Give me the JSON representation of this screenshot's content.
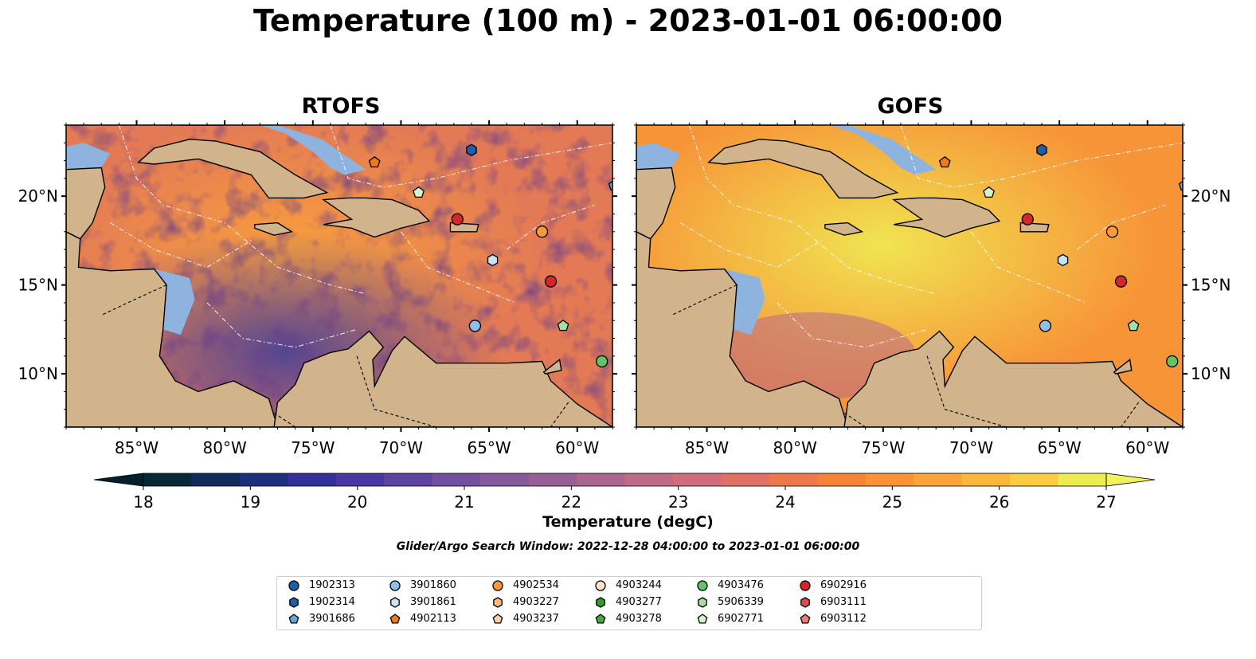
{
  "title": "Temperature (100 m) - 2023-01-01 06:00:00",
  "panels": [
    {
      "id": "rtofs",
      "title": "RTOFS"
    },
    {
      "id": "gofs",
      "title": "GOFS"
    }
  ],
  "axes": {
    "x_ticks": [
      "85°W",
      "80°W",
      "75°W",
      "70°W",
      "65°W",
      "60°W"
    ],
    "x_tick_values": [
      -85,
      -80,
      -75,
      -70,
      -65,
      -60
    ],
    "y_ticks": [
      "20°N",
      "15°N",
      "10°N"
    ],
    "y_tick_values": [
      20,
      15,
      10
    ],
    "lon_range": [
      -89,
      -58
    ],
    "lat_range": [
      7,
      24
    ]
  },
  "colorbar": {
    "ticks": [
      "18",
      "19",
      "20",
      "21",
      "22",
      "23",
      "24",
      "25",
      "26",
      "27"
    ],
    "label": "Temperature (degC)",
    "range": [
      18,
      27
    ],
    "colors": [
      "#06293a",
      "#0f2c5a",
      "#1e2f7d",
      "#33309a",
      "#4a37a0",
      "#5f43a0",
      "#72509f",
      "#86599c",
      "#985f97",
      "#ab6690",
      "#bd6b86",
      "#cf6e7a",
      "#df7265",
      "#ec784e",
      "#f7833b",
      "#fb9237",
      "#fca33a",
      "#fbb63e",
      "#f9cc44",
      "#eded52"
    ],
    "under_color": "#04202e",
    "over_color": "#f0f25e"
  },
  "search_window": "Glider/Argo Search Window: 2022-12-28 04:00:00 to 2023-01-01 06:00:00",
  "legend": [
    {
      "id": "1902313",
      "marker": "circle",
      "color": "#1f5fa8"
    },
    {
      "id": "1902314",
      "marker": "hexagon",
      "color": "#1f5fa8"
    },
    {
      "id": "3901686",
      "marker": "pentagon",
      "color": "#6aa5dc"
    },
    {
      "id": "3901860",
      "marker": "circle",
      "color": "#8fc1e8"
    },
    {
      "id": "3901861",
      "marker": "hexagon",
      "color": "#c8e2f7"
    },
    {
      "id": "4902113",
      "marker": "pentagon",
      "color": "#f07a14"
    },
    {
      "id": "4902534",
      "marker": "circle",
      "color": "#fb9a3a"
    },
    {
      "id": "4903227",
      "marker": "hexagon",
      "color": "#fdba7c"
    },
    {
      "id": "4903237",
      "marker": "pentagon",
      "color": "#fdd1a8"
    },
    {
      "id": "4903244",
      "marker": "circle",
      "color": "#fde3cf"
    },
    {
      "id": "4903277",
      "marker": "hexagon",
      "color": "#2ca02c"
    },
    {
      "id": "4903278",
      "marker": "pentagon",
      "color": "#41ab3f"
    },
    {
      "id": "4903476",
      "marker": "circle",
      "color": "#66c266"
    },
    {
      "id": "5906339",
      "marker": "hexagon",
      "color": "#a3dfa0"
    },
    {
      "id": "6902771",
      "marker": "pentagon",
      "color": "#d4f2cf"
    },
    {
      "id": "6902916",
      "marker": "circle",
      "color": "#d62728"
    },
    {
      "id": "6903111",
      "marker": "hexagon",
      "color": "#e34a4a"
    },
    {
      "id": "6903112",
      "marker": "pentagon",
      "color": "#f07c7c"
    }
  ],
  "observations": [
    {
      "lon": -71.5,
      "lat": 21.9,
      "marker": "pentagon",
      "color": "#f07a14"
    },
    {
      "lon": -66.0,
      "lat": 22.6,
      "marker": "hexagon",
      "color": "#1f5fa8"
    },
    {
      "lon": -69.0,
      "lat": 20.2,
      "marker": "pentagon",
      "color": "#d4f2cf"
    },
    {
      "lon": -66.8,
      "lat": 18.7,
      "marker": "circle",
      "color": "#d62728"
    },
    {
      "lon": -62.0,
      "lat": 18.0,
      "marker": "circle",
      "color": "#fb9a3a"
    },
    {
      "lon": -64.8,
      "lat": 16.4,
      "marker": "hexagon",
      "color": "#c8e2f7"
    },
    {
      "lon": -61.5,
      "lat": 15.2,
      "marker": "circle",
      "color": "#d62728"
    },
    {
      "lon": -65.8,
      "lat": 12.7,
      "marker": "circle",
      "color": "#8fc1e8"
    },
    {
      "lon": -60.8,
      "lat": 12.7,
      "marker": "pentagon",
      "color": "#a3dfa0"
    },
    {
      "lon": -58.6,
      "lat": 10.7,
      "marker": "circle",
      "color": "#66c266"
    },
    {
      "lon": -57.9,
      "lat": 20.6,
      "marker": "pentagon",
      "color": "#6aa5dc"
    }
  ]
}
